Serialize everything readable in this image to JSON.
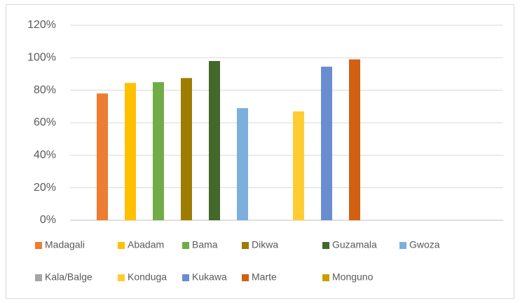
{
  "chart_data": {
    "type": "bar",
    "categories": [
      null
    ],
    "series": [
      {
        "name": "Madagali",
        "color": "#ed7d31",
        "values": [
          78
        ]
      },
      {
        "name": "Abadam",
        "color": "#ffc000",
        "values": [
          84.5
        ]
      },
      {
        "name": "Bama",
        "color": "#70ad47",
        "values": [
          85
        ]
      },
      {
        "name": "Dikwa",
        "color": "#9e7c00",
        "values": [
          87.5
        ]
      },
      {
        "name": "Guzamala",
        "color": "#43682b",
        "values": [
          98
        ]
      },
      {
        "name": "Gwoza",
        "color": "#7cafdd",
        "values": [
          69
        ]
      },
      {
        "name": "Kala/Balge",
        "color": "#a5a5a5",
        "values": [
          null
        ]
      },
      {
        "name": "Konduga",
        "color": "#ffcd33",
        "values": [
          67
        ]
      },
      {
        "name": "Kukawa",
        "color": "#698ed0",
        "values": [
          94.5
        ]
      },
      {
        "name": "Marte",
        "color": "#d26012",
        "values": [
          99
        ]
      },
      {
        "name": "Monguno",
        "color": "#c9a000",
        "values": [
          null
        ]
      }
    ],
    "ylim": [
      0,
      120
    ],
    "yticks": [
      {
        "value": 0,
        "label": "0%"
      },
      {
        "value": 20,
        "label": "20%"
      },
      {
        "value": 40,
        "label": "40%"
      },
      {
        "value": 60,
        "label": "60%"
      },
      {
        "value": 80,
        "label": "80%"
      },
      {
        "value": 100,
        "label": "100%"
      },
      {
        "value": 120,
        "label": "120%"
      }
    ],
    "grid": true
  }
}
